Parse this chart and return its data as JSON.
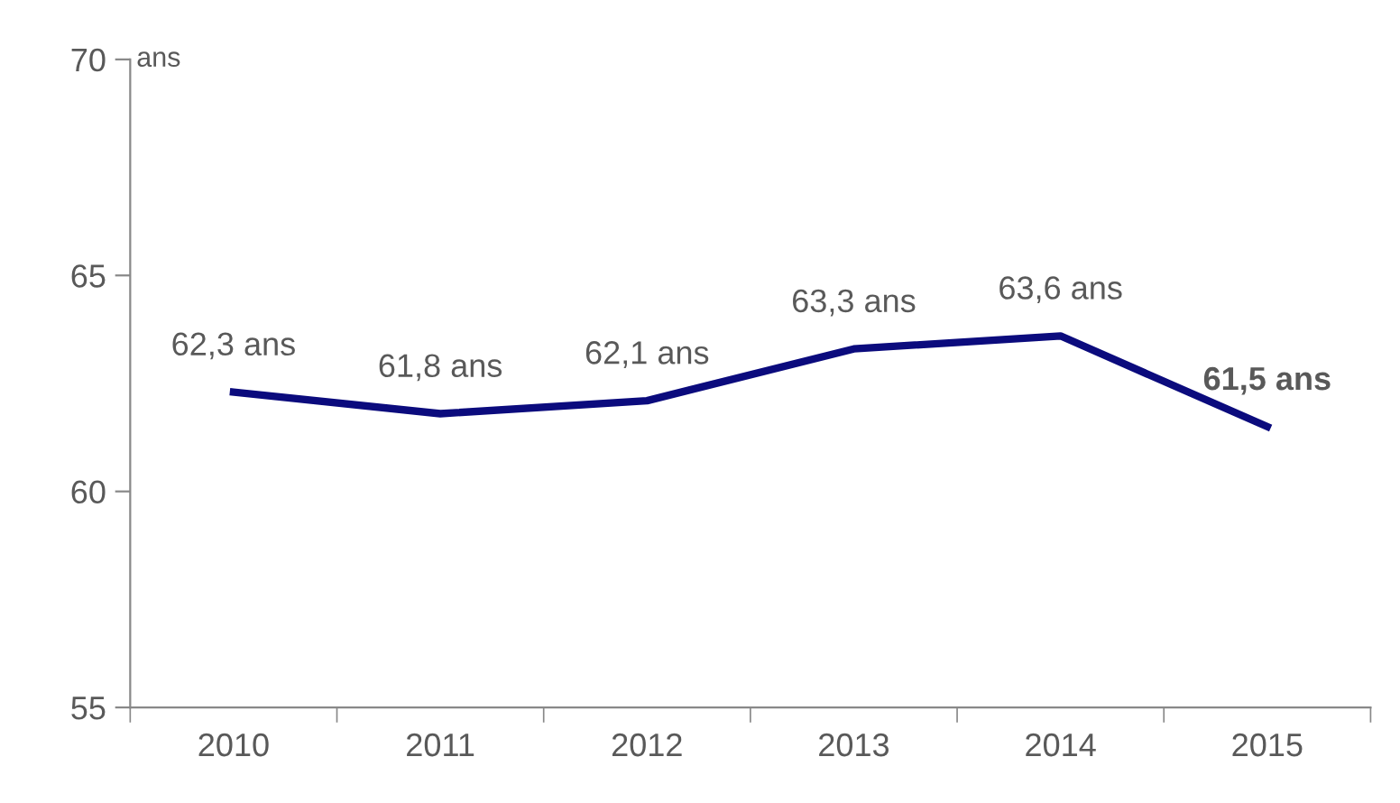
{
  "chart_data": {
    "type": "line",
    "ylabel": "ans",
    "categories": [
      "2010",
      "2011",
      "2012",
      "2013",
      "2014",
      "2015"
    ],
    "series": [
      {
        "color": "#0b0b7d",
        "values": [
          62.3,
          61.8,
          62.1,
          63.3,
          63.6,
          61.5
        ],
        "value_labels": [
          "62,3 ans",
          "61,8 ans",
          "62,1 ans",
          "63,3 ans",
          "63,6 ans",
          "61,5 ans"
        ]
      }
    ],
    "ylim": [
      55,
      70
    ],
    "yticks": [
      55,
      60,
      65,
      70
    ],
    "grid": false,
    "legend": false,
    "marker": "none",
    "line_style": "solid"
  }
}
